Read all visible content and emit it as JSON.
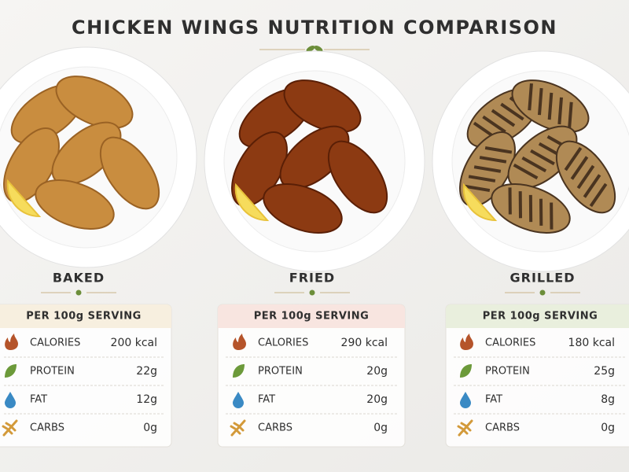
{
  "title": "CHICKEN WINGS NUTRITION COMPARISON",
  "methods": [
    {
      "name": "BAKED",
      "serving": "PER 100g SERVING",
      "rows": [
        {
          "label": "CALORIES",
          "value": "200 kcal"
        },
        {
          "label": "PROTEIN",
          "value": "22g"
        },
        {
          "label": "FAT",
          "value": "12g"
        },
        {
          "label": "CARBS",
          "value": "0g"
        }
      ]
    },
    {
      "name": "FRIED",
      "serving": "PER 100g SERVING",
      "rows": [
        {
          "label": "CALORIES",
          "value": "290 kcal"
        },
        {
          "label": "PROTEIN",
          "value": "20g"
        },
        {
          "label": "FAT",
          "value": "20g"
        },
        {
          "label": "CARBS",
          "value": "0g"
        }
      ]
    },
    {
      "name": "GRILLED",
      "serving": "PER 100g SERVING",
      "rows": [
        {
          "label": "CALORIES",
          "value": "180 kcal"
        },
        {
          "label": "PROTEIN",
          "value": "25g"
        },
        {
          "label": "FAT",
          "value": "8g"
        },
        {
          "label": "CARBS",
          "value": "0g"
        }
      ]
    }
  ]
}
